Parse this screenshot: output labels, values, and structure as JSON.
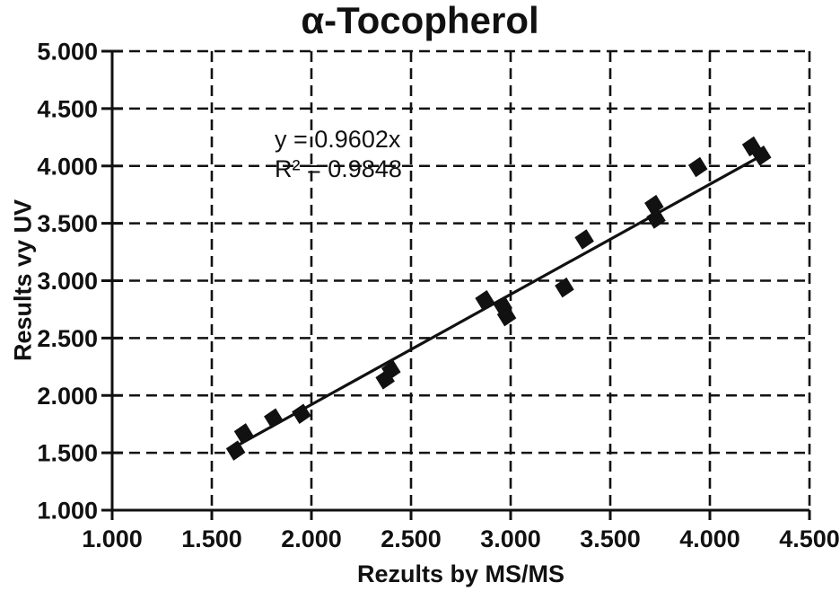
{
  "chart_data": {
    "type": "scatter",
    "title": "α-Tocopherol",
    "xlabel": "Rezults by MS/MS",
    "ylabel": "Results vy UV",
    "xlim": [
      1.0,
      4.5
    ],
    "ylim": [
      1.0,
      5.0
    ],
    "x_tick_labels": [
      "1.000",
      "1.500",
      "2.000",
      "2.500",
      "3.000",
      "3.500",
      "4.000",
      "4.500"
    ],
    "y_tick_labels": [
      "1.000",
      "1.500",
      "2.000",
      "2.500",
      "3.000",
      "3.500",
      "4.000",
      "4.500",
      "5.000"
    ],
    "grid": "dashed",
    "legend": "none",
    "marker": "black-diamond",
    "points": [
      [
        1.62,
        1.52
      ],
      [
        1.66,
        1.67
      ],
      [
        1.81,
        1.8
      ],
      [
        1.95,
        1.84
      ],
      [
        2.37,
        2.14
      ],
      [
        2.4,
        2.22
      ],
      [
        2.87,
        2.83
      ],
      [
        2.96,
        2.78
      ],
      [
        2.98,
        2.69
      ],
      [
        3.27,
        2.94
      ],
      [
        3.37,
        3.36
      ],
      [
        3.72,
        3.66
      ],
      [
        3.73,
        3.54
      ],
      [
        3.94,
        3.99
      ],
      [
        4.21,
        4.17
      ],
      [
        4.26,
        4.09
      ]
    ],
    "trendline": {
      "equation": "y = 0.9602x",
      "r_squared_label": "R² = 0.9848",
      "slope": 0.9602,
      "intercept": 0,
      "x_start": 1.6,
      "x_end": 4.24
    },
    "colors": {
      "foreground": "#111111",
      "background": "#ffffff"
    }
  }
}
